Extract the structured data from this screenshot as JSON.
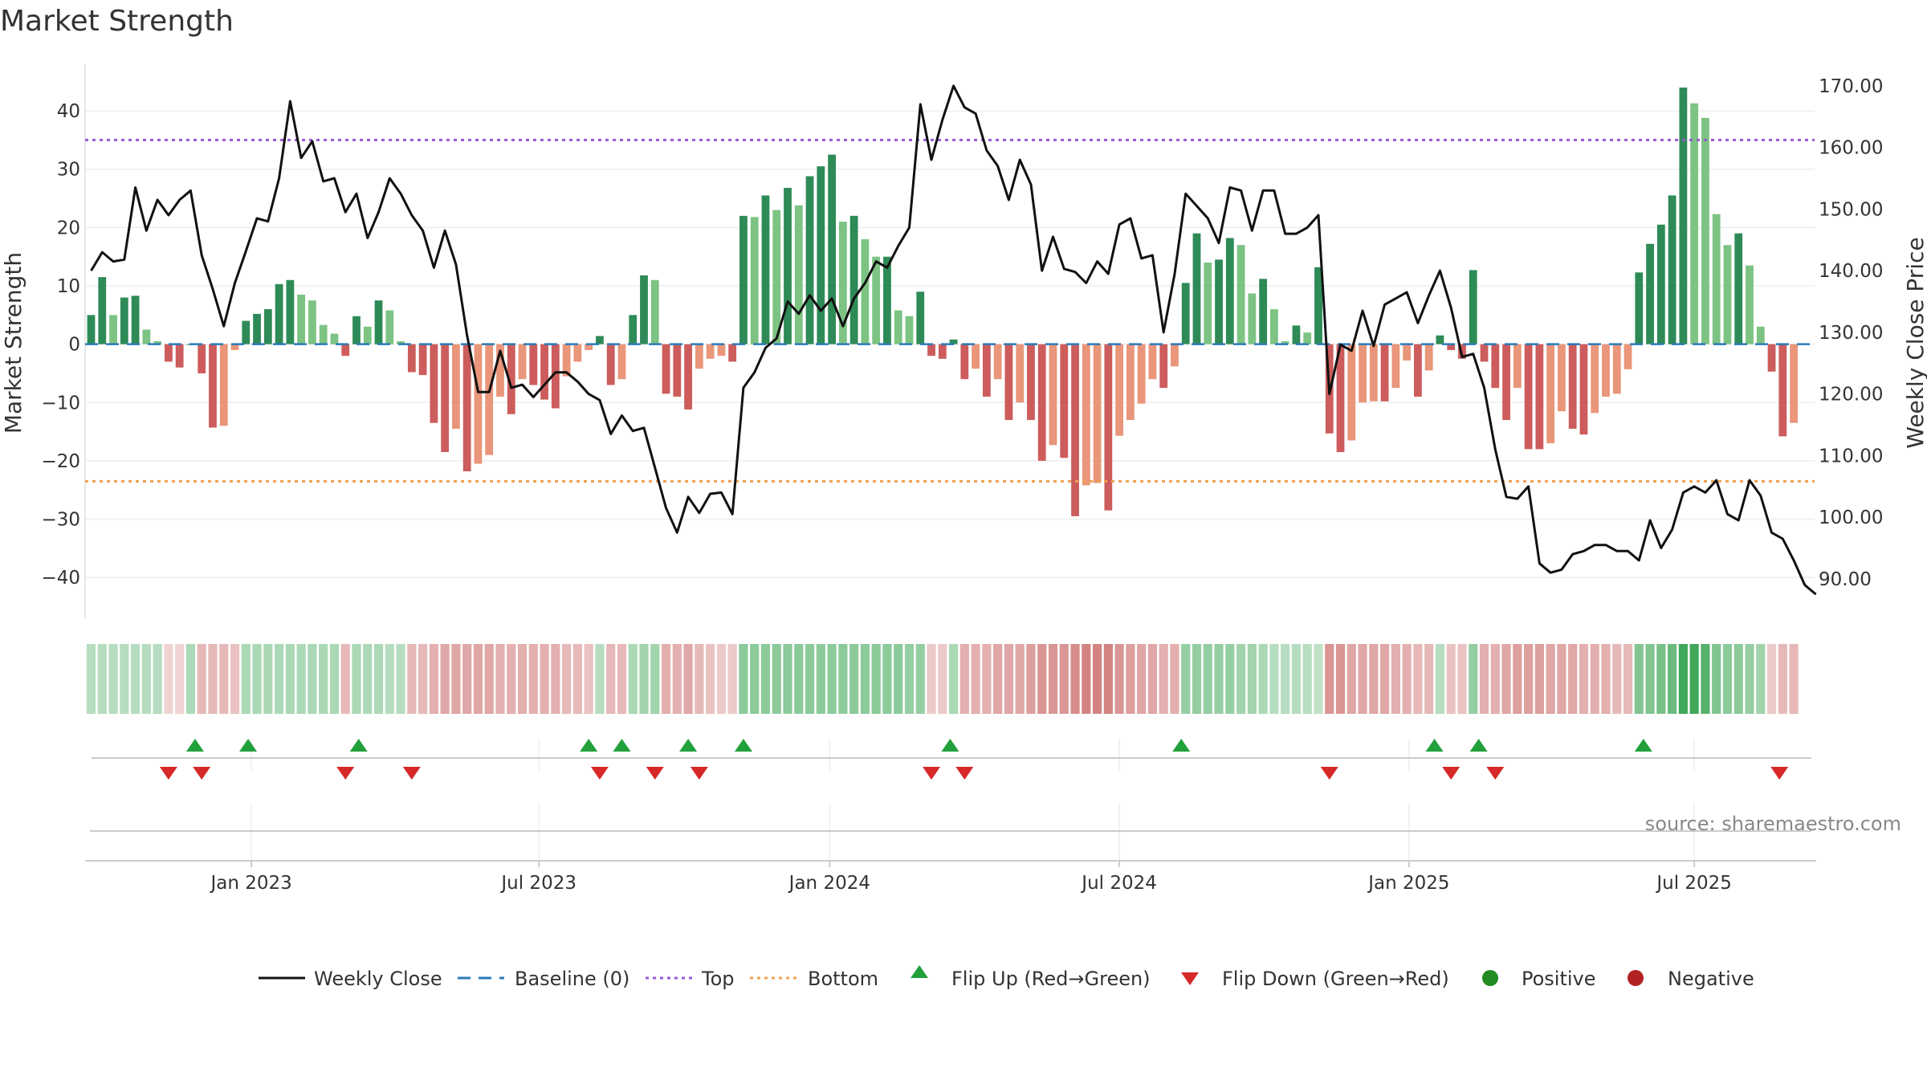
{
  "chart_data": {
    "type": "bar",
    "title": "Market Strength",
    "ylabel_left": "Market Strength",
    "ylabel_right": "Weekly Close Price",
    "source": "source: sharemaestro.com",
    "ylim_left": [
      -47,
      48
    ],
    "ylim_right": [
      83.6,
      173.5
    ],
    "left_ticks": [
      "40",
      "30",
      "20",
      "10",
      "0",
      "−10",
      "−20",
      "−30",
      "−40"
    ],
    "left_tick_values": [
      40,
      30,
      20,
      10,
      0,
      -10,
      -20,
      -30,
      -40
    ],
    "right_ticks": [
      "170.00",
      "160.00",
      "150.00",
      "140.00",
      "130.00",
      "120.00",
      "110.00",
      "100.00",
      "90.00"
    ],
    "right_tick_values": [
      170,
      160,
      150,
      140,
      130,
      120,
      110,
      100,
      90
    ],
    "top_line": 35,
    "bottom_line": -23.5,
    "baseline": 0,
    "x_ticks": [
      "Jan 2023",
      "Jul 2023",
      "Jan 2024",
      "Jul 2024",
      "Jan 2025",
      "Jul 2025"
    ],
    "x_tick_weeks": [
      14.5,
      40.5,
      66.8,
      93,
      119.2,
      145
    ],
    "bar_strength": [
      5,
      11.5,
      5,
      8,
      8.3,
      2.5,
      0.5,
      -3,
      -4,
      0,
      -5,
      -14.3,
      -14,
      -1,
      4,
      5.2,
      6,
      10.3,
      11,
      8.5,
      7.5,
      3.3,
      1.8,
      -2,
      4.8,
      3,
      7.5,
      5.8,
      0.5,
      -4.8,
      -5.3,
      -13.5,
      -18.5,
      -14.5,
      -21.8,
      -20.5,
      -19,
      -9,
      -12,
      -6,
      -7,
      -9.5,
      -11,
      -5.5,
      -3,
      -1,
      1.4,
      -7,
      -6,
      5,
      11.8,
      11,
      -8.5,
      -9,
      -11.2,
      -4.2,
      -2.5,
      -2,
      -3,
      22,
      21.8,
      25.5,
      23,
      26.8,
      23.8,
      28.8,
      30.5,
      32.5,
      21,
      22,
      18,
      15,
      15,
      5.8,
      4.8,
      9,
      -2,
      -2.5,
      0.8,
      -6,
      -4.2,
      -9,
      -6,
      -13,
      -10,
      -13,
      -20,
      -17.3,
      -19.5,
      -29.5,
      -24.2,
      -23.8,
      -28.5,
      -15.7,
      -13,
      -10.2,
      -6,
      -7.5,
      -3.8,
      10.5,
      19,
      14,
      14.5,
      18.2,
      17,
      8.7,
      11.2,
      6,
      0.5,
      3.2,
      2,
      13.2,
      -15.3,
      -18.5,
      -16.5,
      -10,
      -9.8,
      -9.8,
      -7.5,
      -2.8,
      -9,
      -4.5,
      1.5,
      -1,
      -2.5,
      12.7,
      -3,
      -7.5,
      -13,
      -7.5,
      -18,
      -18,
      -17,
      -11.5,
      -14.5,
      -15.5,
      -11.8,
      -9,
      -8.5,
      -4.3,
      12.3,
      17.2,
      20.5,
      25.5,
      44,
      41.3,
      38.8,
      22.3,
      17,
      19,
      13.5,
      3,
      -4.7,
      -15.8,
      -13.5
    ],
    "weekly_close": [
      140,
      143,
      141.5,
      141.8,
      153.5,
      146.5,
      151.5,
      149,
      151.5,
      153,
      142.5,
      137,
      131,
      138,
      143.2,
      148.5,
      148,
      155,
      167.5,
      158.3,
      161,
      154.5,
      155,
      149.5,
      152.5,
      145.3,
      149.5,
      155,
      152.5,
      149,
      146.5,
      140.5,
      146.5,
      141,
      129.5,
      120.3,
      120.3,
      127,
      121,
      121.5,
      119.5,
      121.5,
      123.5,
      123.5,
      122,
      120,
      119,
      113.5,
      116.5,
      114,
      114.5,
      108,
      101.5,
      97.5,
      103.3,
      100.7,
      103.8,
      104,
      100.5,
      121,
      123.5,
      127.5,
      129,
      135,
      133,
      136,
      133.5,
      135.5,
      131,
      135.5,
      138,
      141.5,
      140.5,
      144,
      147,
      167,
      158,
      164.5,
      170,
      166.5,
      165.5,
      159.5,
      157,
      151.5,
      158,
      154,
      140,
      145.5,
      140.3,
      139.8,
      138,
      141.5,
      139.5,
      147.5,
      148.5,
      142,
      142.5,
      130,
      139.5,
      152.5,
      150.5,
      148.5,
      144.5,
      153.5,
      153,
      146.5,
      153,
      153,
      146,
      146,
      147,
      149,
      120,
      128,
      127,
      133.5,
      127.8,
      134.5,
      135.5,
      136.5,
      131.5,
      136,
      140,
      134,
      126,
      126.5,
      121,
      111,
      103.3,
      103,
      105,
      92.5,
      91,
      91.5,
      94,
      94.5,
      95.5,
      95.5,
      94.5,
      94.5,
      93,
      99.5,
      95,
      98,
      104,
      105,
      104,
      106,
      100.5,
      99.5,
      106,
      103.5,
      97.5,
      96.5,
      93,
      89,
      87.5
    ],
    "strip_fills": [
      0.35,
      0.35,
      0.35,
      0.35,
      0.35,
      0.35,
      0.35,
      0.25,
      0.25,
      0.4,
      0.4,
      0.4,
      0.4,
      0.35,
      0.4,
      0.4,
      0.4,
      0.4,
      0.4,
      0.4,
      0.4,
      0.4,
      0.4,
      0.4,
      0.4,
      0.4,
      0.4,
      0.35,
      0.35,
      0.4,
      0.4,
      0.45,
      0.5,
      0.5,
      0.5,
      0.5,
      0.5,
      0.45,
      0.45,
      0.45,
      0.45,
      0.45,
      0.45,
      0.4,
      0.4,
      0.35,
      0.35,
      0.4,
      0.4,
      0.4,
      0.45,
      0.45,
      0.45,
      0.45,
      0.5,
      0.4,
      0.35,
      0.3,
      0.3,
      0.55,
      0.55,
      0.55,
      0.55,
      0.55,
      0.55,
      0.55,
      0.55,
      0.55,
      0.55,
      0.55,
      0.55,
      0.55,
      0.55,
      0.55,
      0.5,
      0.5,
      0.3,
      0.3,
      0.4,
      0.45,
      0.45,
      0.45,
      0.5,
      0.5,
      0.5,
      0.55,
      0.6,
      0.6,
      0.6,
      0.65,
      0.7,
      0.7,
      0.7,
      0.6,
      0.55,
      0.5,
      0.5,
      0.45,
      0.45,
      0.5,
      0.5,
      0.5,
      0.5,
      0.5,
      0.45,
      0.45,
      0.4,
      0.35,
      0.35,
      0.35,
      0.35,
      0.3,
      0.6,
      0.6,
      0.5,
      0.5,
      0.5,
      0.5,
      0.45,
      0.45,
      0.4,
      0.4,
      0.35,
      0.35,
      0.35,
      0.5,
      0.45,
      0.45,
      0.5,
      0.55,
      0.55,
      0.55,
      0.5,
      0.5,
      0.5,
      0.45,
      0.45,
      0.45,
      0.4,
      0.4,
      0.6,
      0.6,
      0.65,
      0.7,
      0.9,
      0.9,
      0.8,
      0.6,
      0.55,
      0.55,
      0.5,
      0.45,
      0.3,
      0.4,
      0.4
    ],
    "flip_up_weeks": [
      9.4,
      14.2,
      24.2,
      45,
      48,
      54,
      59,
      77.7,
      98.6,
      121.5,
      125.5,
      140.4
    ],
    "flip_down_weeks": [
      7,
      10,
      23,
      29,
      46,
      51,
      55,
      76,
      79,
      112,
      123,
      127,
      152.7
    ],
    "colors": {
      "strong_green": "#2e8b57",
      "light_green": "#7dc383",
      "strong_red": "#cd5c5c",
      "light_red": "#e9967a",
      "close_line": "#111111",
      "baseline": "#2b7bba",
      "top": "#9b59d6",
      "bottom": "#f0a050",
      "flip_up": "#22a03c",
      "flip_down": "#d62828",
      "positive": "#228b22",
      "negative": "#b22222",
      "strip_green": "#2e9e47",
      "strip_red": "#c0504d"
    }
  },
  "legend": {
    "weekly_close": "Weekly Close",
    "baseline": "Baseline (0)",
    "top": "Top",
    "bottom": "Bottom",
    "flip_up": "Flip Up (Red→Green)",
    "flip_down": "Flip Down (Green→Red)",
    "positive": "Positive",
    "negative": "Negative"
  }
}
